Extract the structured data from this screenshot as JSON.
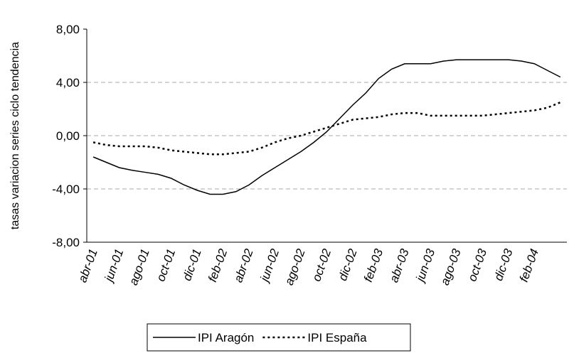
{
  "chart_data": {
    "type": "line",
    "y_label": "tasas variacion series ciclo tendencia",
    "categories": [
      "abr-01",
      null,
      "jun-01",
      null,
      "ago-01",
      null,
      "oct-01",
      null,
      "dic-01",
      null,
      "feb-02",
      null,
      "abr-02",
      null,
      "jun-02",
      null,
      "ago-02",
      null,
      "oct-02",
      null,
      "dic-02",
      null,
      "feb-03",
      null,
      "abr-03",
      null,
      "jun-03",
      null,
      "ago-03",
      null,
      "oct-03",
      null,
      "dic-03",
      null,
      "feb-04",
      null,
      null
    ],
    "series": [
      {
        "name": "IPI Aragón",
        "color": "#000000",
        "dash": "solid",
        "values": [
          -1.6,
          -2.0,
          -2.4,
          -2.6,
          -2.75,
          -2.9,
          -3.2,
          -3.7,
          -4.1,
          -4.4,
          -4.4,
          -4.2,
          -3.7,
          -3.0,
          -2.4,
          -1.8,
          -1.2,
          -0.5,
          0.3,
          1.3,
          2.3,
          3.2,
          4.3,
          5.0,
          5.4,
          5.4,
          5.4,
          5.6,
          5.7,
          5.7,
          5.7,
          5.7,
          5.7,
          5.6,
          5.4,
          4.9,
          4.4
        ]
      },
      {
        "name": "IPI España",
        "color": "#000000",
        "dash": "dotted",
        "values": [
          -0.5,
          -0.7,
          -0.8,
          -0.8,
          -0.8,
          -0.9,
          -1.1,
          -1.2,
          -1.3,
          -1.4,
          -1.4,
          -1.3,
          -1.2,
          -0.9,
          -0.5,
          -0.2,
          0.0,
          0.3,
          0.6,
          0.9,
          1.2,
          1.3,
          1.4,
          1.6,
          1.7,
          1.7,
          1.5,
          1.5,
          1.5,
          1.5,
          1.5,
          1.6,
          1.7,
          1.8,
          1.9,
          2.1,
          2.5
        ]
      }
    ],
    "ylim": [
      -8,
      8
    ],
    "yticks": [
      {
        "value": -8,
        "label": "-8,00"
      },
      {
        "value": -4,
        "label": "-4,00"
      },
      {
        "value": 0,
        "label": "0,00"
      },
      {
        "value": 4,
        "label": "4,00"
      },
      {
        "value": 8,
        "label": "8,00"
      }
    ],
    "grid": true,
    "legend": "bottom"
  }
}
